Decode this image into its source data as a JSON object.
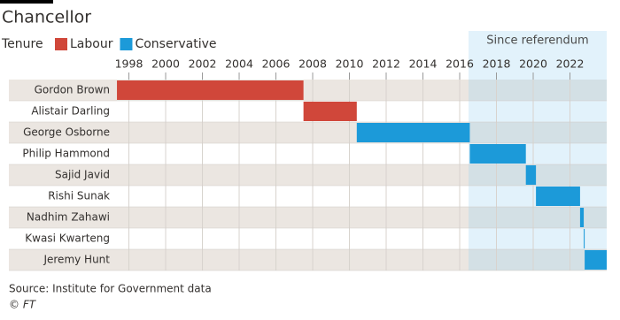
{
  "chart_data": {
    "type": "timeline",
    "title": "Chancellor",
    "legend_title": "Tenure",
    "series": [
      {
        "name": "Labour",
        "color": "#d0473a",
        "categories": [
          "Gordon Brown",
          "Alistair Darling"
        ],
        "start": [
          1997.35,
          2007.5
        ],
        "end": [
          2007.5,
          2010.4
        ]
      },
      {
        "name": "Conservative",
        "color": "#1c9ad9",
        "categories": [
          "George Osborne",
          "Philip Hammond",
          "Sajid Javid",
          "Rishi Sunak",
          "Nadhim Zahawi",
          "Kwasi Kwarteng",
          "Jeremy Hunt"
        ],
        "start": [
          2010.4,
          2016.55,
          2019.6,
          2020.15,
          2022.55,
          2022.75,
          2022.8
        ],
        "end": [
          2016.55,
          2019.6,
          2020.15,
          2022.55,
          2022.75,
          2022.8,
          2024
        ]
      }
    ],
    "highlight": {
      "label": "Since referendum",
      "start": 2016.48
    },
    "xlim": [
      1997.3,
      2024
    ],
    "xticks": [
      1998,
      2000,
      2002,
      2004,
      2006,
      2008,
      2010,
      2012,
      2014,
      2016,
      2018,
      2020,
      2022
    ],
    "grid": true,
    "source": "Source:  Institute for Government data",
    "credit": "© FT"
  }
}
